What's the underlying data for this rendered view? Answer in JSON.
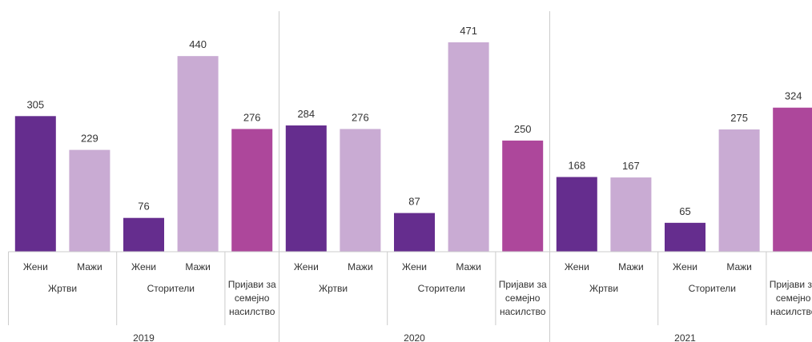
{
  "chart_data": {
    "type": "bar",
    "xlabel": "",
    "ylabel": "",
    "ylim": [
      0,
      520
    ],
    "grid": false,
    "legend": "none",
    "colors": {
      "women": "#652d8e",
      "men": "#c9abd3",
      "reports": "#ad479b"
    },
    "groups": [
      {
        "year": "2019",
        "subgroups": [
          {
            "label": "Жртви",
            "bars": [
              {
                "label": "Жени",
                "value": 305,
                "kind": "women"
              },
              {
                "label": "Мажи",
                "value": 229,
                "kind": "men"
              }
            ]
          },
          {
            "label": "Сторители",
            "bars": [
              {
                "label": "Жени",
                "value": 76,
                "kind": "women"
              },
              {
                "label": "Мажи",
                "value": 440,
                "kind": "men"
              }
            ]
          },
          {
            "label": "Пријави за семејно насилство",
            "bars": [
              {
                "label": "",
                "value": 276,
                "kind": "reports"
              }
            ]
          }
        ]
      },
      {
        "year": "2020",
        "subgroups": [
          {
            "label": "Жртви",
            "bars": [
              {
                "label": "Жени",
                "value": 284,
                "kind": "women"
              },
              {
                "label": "Мажи",
                "value": 276,
                "kind": "men"
              }
            ]
          },
          {
            "label": "Сторители",
            "bars": [
              {
                "label": "Жени",
                "value": 87,
                "kind": "women"
              },
              {
                "label": "Мажи",
                "value": 471,
                "kind": "men"
              }
            ]
          },
          {
            "label": "Пријави за семејно насилство",
            "bars": [
              {
                "label": "",
                "value": 250,
                "kind": "reports"
              }
            ]
          }
        ]
      },
      {
        "year": "2021",
        "subgroups": [
          {
            "label": "Жртви",
            "bars": [
              {
                "label": "Жени",
                "value": 168,
                "kind": "women"
              },
              {
                "label": "Мажи",
                "value": 167,
                "kind": "men"
              }
            ]
          },
          {
            "label": "Сторители",
            "bars": [
              {
                "label": "Жени",
                "value": 65,
                "kind": "women"
              },
              {
                "label": "Мажи",
                "value": 275,
                "kind": "men"
              }
            ]
          },
          {
            "label": "Пријави за семејно насилство",
            "bars": [
              {
                "label": "",
                "value": 324,
                "kind": "reports"
              }
            ]
          }
        ]
      }
    ]
  }
}
